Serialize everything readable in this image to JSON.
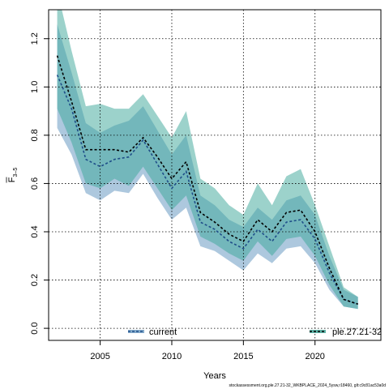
{
  "chart_data": {
    "type": "area",
    "xlabel": "Years",
    "ylabel_main": "F",
    "ylabel_sub": "3–5",
    "xlim": [
      2001.4,
      2024.6
    ],
    "ylim": [
      -0.05,
      1.32
    ],
    "x_ticks": [
      2005,
      2010,
      2015,
      2020
    ],
    "y_ticks": [
      0.0,
      0.2,
      0.4,
      0.6,
      0.8,
      1.0,
      1.2
    ],
    "grid": true,
    "legend_placement": "bottom",
    "footer": "stockassessment.org,ple.27.21-32_WKBPLACE_2024_5ysw,r18460, glt:c9c81ac53a0d",
    "series": [
      {
        "name": "current",
        "color": "#5B8DB8",
        "fill": "#6A9BC3",
        "fill_opacity": 0.55,
        "line_color": "#1F4E89",
        "x": [
          2002,
          2003,
          2004,
          2005,
          2006,
          2007,
          2008,
          2009,
          2010,
          2011,
          2012,
          2013,
          2014,
          2015,
          2016,
          2017,
          2018,
          2019,
          2020,
          2021,
          2022,
          2023
        ],
        "values": [
          1.05,
          0.91,
          0.7,
          0.67,
          0.7,
          0.71,
          0.78,
          0.68,
          0.58,
          0.65,
          0.44,
          0.41,
          0.36,
          0.33,
          0.41,
          0.36,
          0.44,
          0.45,
          0.37,
          0.23,
          0.12,
          0.1
        ],
        "lower": [
          0.83,
          0.72,
          0.56,
          0.53,
          0.57,
          0.56,
          0.64,
          0.54,
          0.45,
          0.5,
          0.34,
          0.32,
          0.28,
          0.24,
          0.31,
          0.27,
          0.33,
          0.34,
          0.27,
          0.16,
          0.09,
          0.08
        ],
        "upper": [
          1.26,
          1.06,
          0.85,
          0.81,
          0.84,
          0.86,
          0.92,
          0.82,
          0.72,
          0.8,
          0.55,
          0.51,
          0.45,
          0.42,
          0.5,
          0.45,
          0.53,
          0.55,
          0.47,
          0.3,
          0.16,
          0.13
        ]
      },
      {
        "name": "ple.27.21-32",
        "color": "#2C9C8C",
        "fill": "#3AA597",
        "fill_opacity": 0.5,
        "line_color": "#000000",
        "x": [
          2002,
          2003,
          2004,
          2005,
          2006,
          2007,
          2008,
          2009,
          2010,
          2011,
          2012,
          2013,
          2014,
          2015,
          2016,
          2017,
          2018,
          2019,
          2020,
          2021,
          2022,
          2023
        ],
        "values": [
          1.13,
          0.94,
          0.74,
          0.74,
          0.74,
          0.73,
          0.79,
          0.71,
          0.62,
          0.69,
          0.48,
          0.44,
          0.39,
          0.36,
          0.45,
          0.4,
          0.48,
          0.49,
          0.4,
          0.25,
          0.12,
          0.1
        ],
        "lower": [
          0.91,
          0.77,
          0.6,
          0.58,
          0.62,
          0.59,
          0.67,
          0.58,
          0.49,
          0.55,
          0.38,
          0.35,
          0.31,
          0.28,
          0.36,
          0.3,
          0.37,
          0.38,
          0.3,
          0.18,
          0.09,
          0.08
        ],
        "upper": [
          1.4,
          1.15,
          0.92,
          0.93,
          0.91,
          0.91,
          0.97,
          0.88,
          0.79,
          0.9,
          0.62,
          0.58,
          0.51,
          0.47,
          0.6,
          0.51,
          0.63,
          0.66,
          0.51,
          0.34,
          0.17,
          0.13
        ]
      }
    ]
  }
}
